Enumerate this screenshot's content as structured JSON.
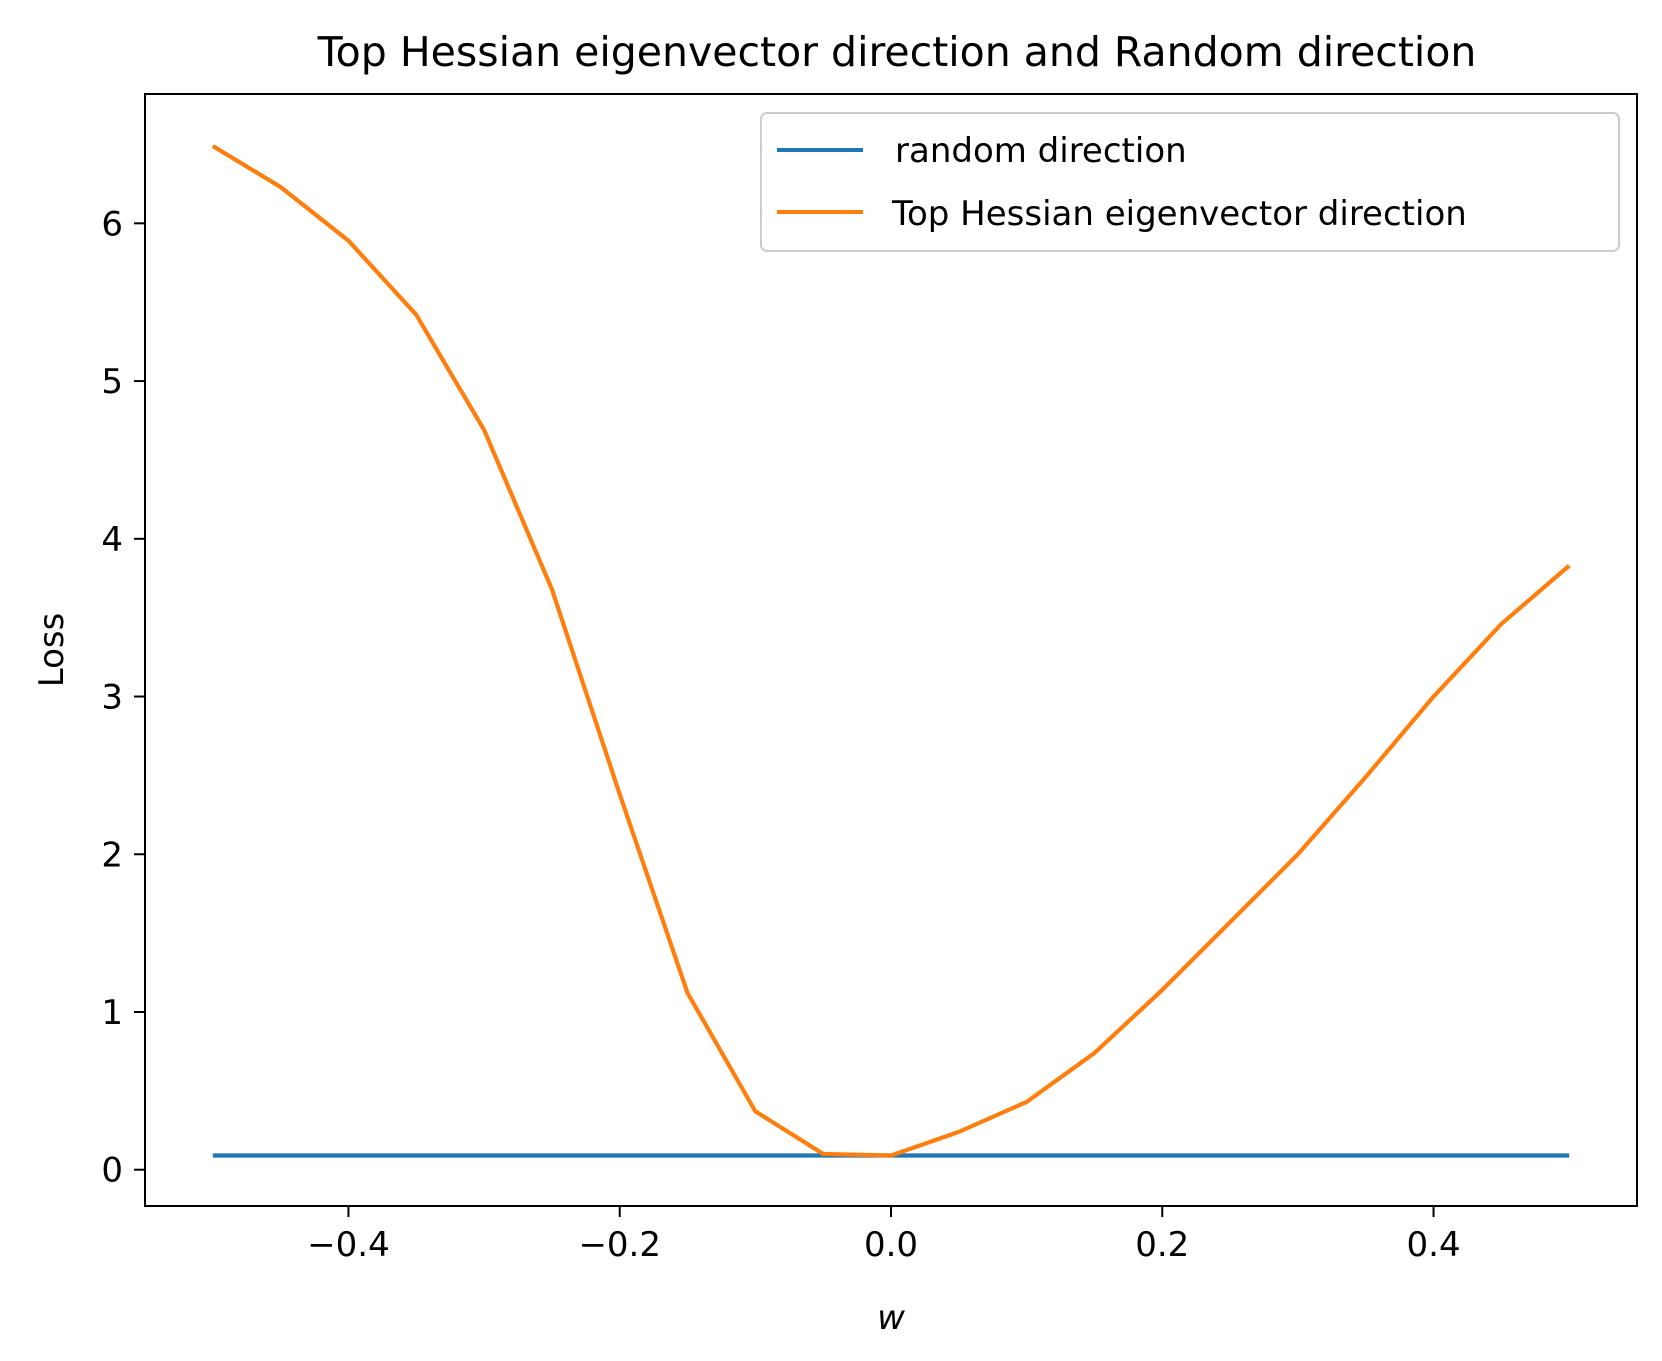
{
  "chart_data": {
    "type": "line",
    "title": "Top Hessian eigenvector direction and Random direction",
    "xlabel": "w",
    "ylabel": "Loss",
    "xlim": [
      -0.55,
      0.55
    ],
    "ylim": [
      -0.23,
      6.82
    ],
    "x_ticks": [
      -0.4,
      -0.2,
      0.0,
      0.2,
      0.4
    ],
    "x_tick_labels": [
      "−0.4",
      "−0.2",
      "0.0",
      "0.2",
      "0.4"
    ],
    "y_ticks": [
      0,
      1,
      2,
      3,
      4,
      5,
      6
    ],
    "y_tick_labels": [
      "0",
      "1",
      "2",
      "3",
      "4",
      "5",
      "6"
    ],
    "grid": false,
    "legend_position": "top-right",
    "x": [
      -0.5,
      -0.45,
      -0.4,
      -0.35,
      -0.3,
      -0.25,
      -0.2,
      -0.15,
      -0.1,
      -0.05,
      0.0,
      0.05,
      0.1,
      0.15,
      0.2,
      0.25,
      0.3,
      0.35,
      0.4,
      0.45,
      0.5
    ],
    "series": [
      {
        "name": "random direction",
        "color": "#1f77b4",
        "values": [
          0.09,
          0.09,
          0.09,
          0.09,
          0.09,
          0.09,
          0.09,
          0.09,
          0.09,
          0.09,
          0.09,
          0.09,
          0.09,
          0.09,
          0.09,
          0.09,
          0.09,
          0.09,
          0.09,
          0.09,
          0.09
        ]
      },
      {
        "name": "Top Hessian eigenvector direction",
        "color": "#ff7f0e",
        "values": [
          6.49,
          6.23,
          5.89,
          5.42,
          4.69,
          3.68,
          2.38,
          1.12,
          0.37,
          0.1,
          0.09,
          0.24,
          0.43,
          0.74,
          1.14,
          1.57,
          2.0,
          2.49,
          3.0,
          3.46,
          3.83
        ]
      }
    ]
  }
}
